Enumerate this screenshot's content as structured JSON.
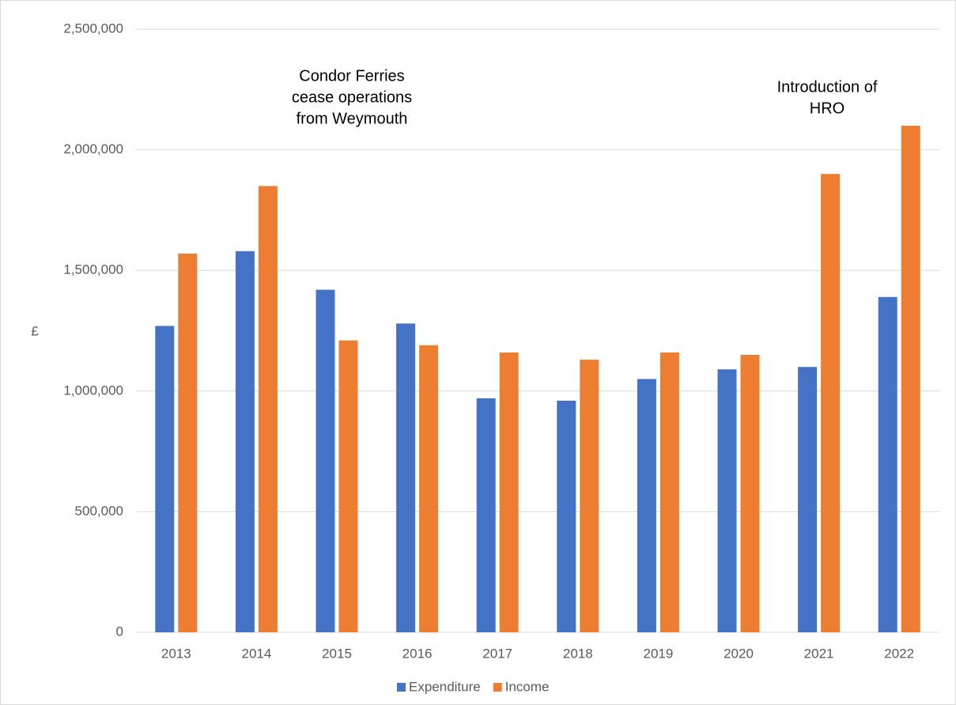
{
  "chart_data": {
    "type": "bar",
    "y_axis_label": "£",
    "categories": [
      "2013",
      "2014",
      "2015",
      "2016",
      "2017",
      "2018",
      "2019",
      "2020",
      "2021",
      "2022"
    ],
    "series": [
      {
        "name": "Expenditure",
        "color": "#4472c4",
        "values": [
          1270000,
          1580000,
          1420000,
          1280000,
          970000,
          960000,
          1050000,
          1090000,
          1100000,
          1390000
        ]
      },
      {
        "name": "Income",
        "color": "#ed7d31",
        "values": [
          1570000,
          1850000,
          1210000,
          1190000,
          1160000,
          1130000,
          1160000,
          1150000,
          1900000,
          2100000
        ]
      }
    ],
    "ylim": [
      0,
      2500000
    ],
    "yticks": [
      0,
      {
        "value": 500000,
        "label": "500,000"
      },
      {
        "value": 1000000,
        "label": "1,000,000"
      },
      {
        "value": 1500000,
        "label": "1,500,000"
      },
      {
        "value": 2000000,
        "label": "2,000,000"
      },
      {
        "value": 2500000,
        "label": "2,500,000"
      }
    ],
    "grid": true,
    "legend": "bottom",
    "annotations": [
      {
        "lines": [
          "Condor Ferries",
          "cease operations",
          "from Weymouth"
        ]
      },
      {
        "lines": [
          "Introduction of",
          "HRO"
        ]
      }
    ]
  }
}
